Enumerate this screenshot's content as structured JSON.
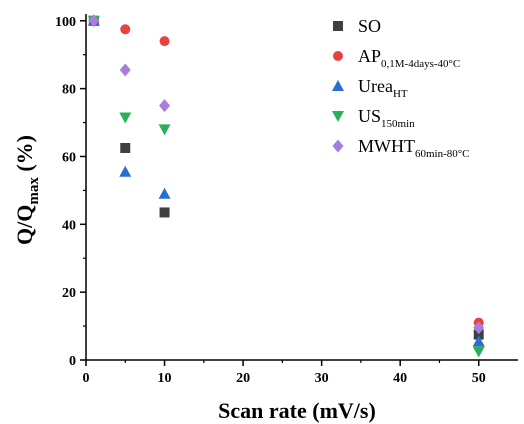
{
  "chart_data": {
    "type": "scatter",
    "title": "",
    "xlabel": "Scan rate (mV/s)",
    "ylabel": {
      "main": "Q/Q",
      "sub": "max",
      "unit": " (%)"
    },
    "xlim": [
      0,
      55
    ],
    "ylim": [
      0,
      102
    ],
    "xticks": [
      0,
      10,
      20,
      30,
      40,
      50
    ],
    "yticks": [
      0,
      20,
      40,
      60,
      80,
      100
    ],
    "grid": false,
    "legend_position": "top-right",
    "x": [
      1,
      5,
      10,
      50
    ],
    "series": [
      {
        "name": "SO",
        "name_main": "SO",
        "name_sub": "",
        "marker": "square",
        "color": "#404040",
        "values": [
          100,
          62.5,
          43.5,
          7.5
        ]
      },
      {
        "name": "AP0,1M-4days-40°C",
        "name_main": "AP",
        "name_sub": "0,1M-4days-40°C",
        "marker": "circle",
        "color": "#e8423e",
        "values": [
          100,
          97.5,
          94,
          11
        ]
      },
      {
        "name": "UreaHT",
        "name_main": "Urea",
        "name_sub": "HT",
        "marker": "triangle-up",
        "color": "#2a6fd0",
        "values": [
          100,
          55.5,
          49,
          5.5
        ]
      },
      {
        "name": "US150min",
        "name_main": "US",
        "name_sub": "150min",
        "marker": "triangle-down",
        "color": "#2bb05a",
        "values": [
          100,
          71.5,
          68,
          2.5
        ]
      },
      {
        "name": "MWHT60min-80°C",
        "name_main": "MWHT",
        "name_sub": "60min-80°C",
        "marker": "diamond",
        "color": "#a77ddd",
        "values": [
          100,
          85.5,
          75,
          9.5
        ]
      }
    ]
  }
}
